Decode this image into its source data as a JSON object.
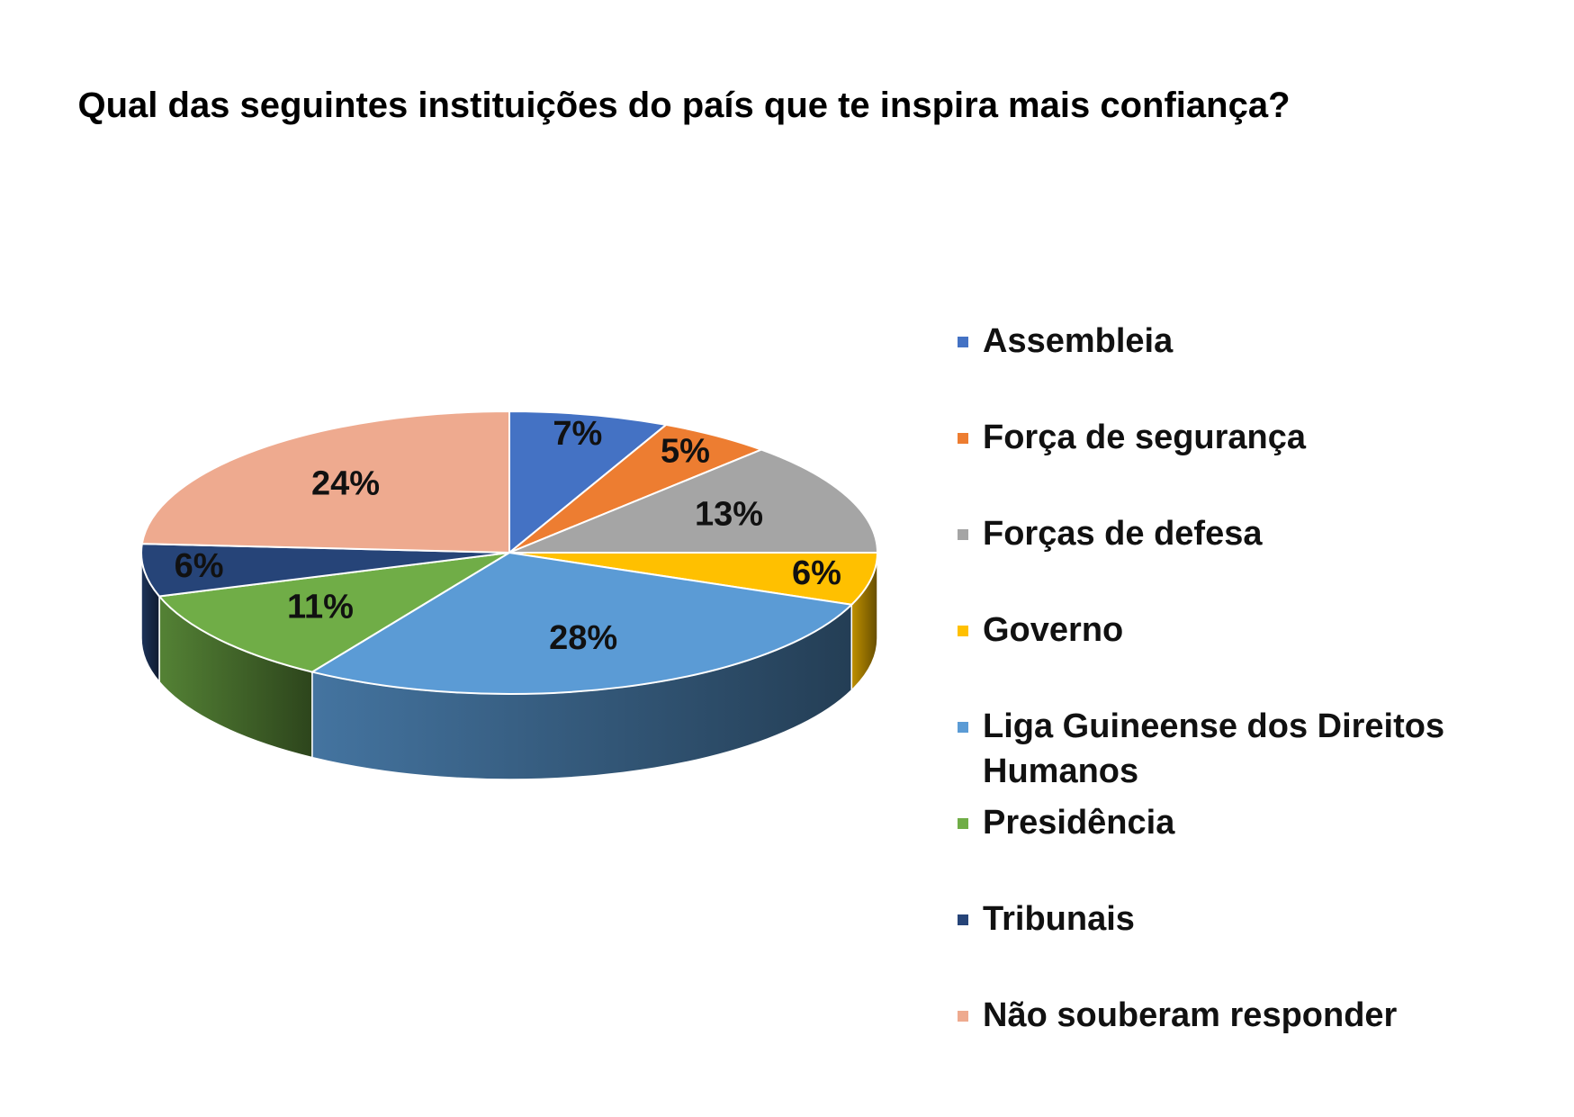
{
  "chart_data": {
    "type": "pie",
    "title": "Qual das seguintes instituições do país que te inspira mais confiança?",
    "categories": [
      "Assembleia",
      "Força de segurança",
      "Forças de defesa",
      "Governo",
      "Liga Guineense dos Direitos Humanos",
      "Presidência",
      "Tribunais",
      "Não souberam responder"
    ],
    "values": [
      7,
      5,
      13,
      6,
      28,
      11,
      6,
      24
    ],
    "value_labels": [
      "7%",
      "5%",
      "13%",
      "6%",
      "28%",
      "11%",
      "6%",
      "24%"
    ],
    "colors": [
      "#4472c4",
      "#ed7d31",
      "#a5a5a5",
      "#ffc000",
      "#5b9bd5",
      "#70ad47",
      "#264478",
      "#eeaa8f"
    ],
    "legend": "right"
  }
}
